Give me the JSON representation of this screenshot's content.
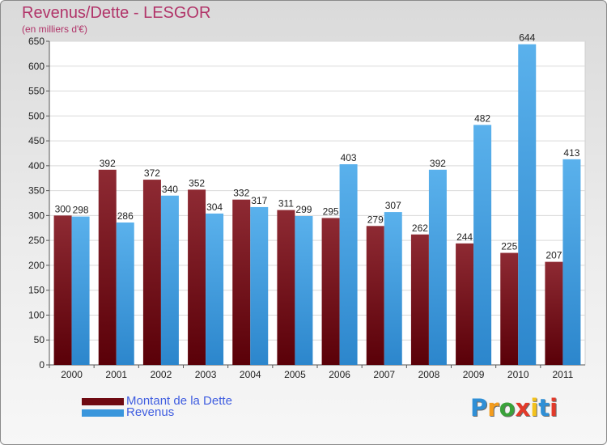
{
  "title": "Revenus/Dette - LESGOR",
  "subtitle": "(en milliers d'€)",
  "colors": {
    "debt": "#7a0f1a",
    "revenue": "#3a96dc",
    "title": "#b13469",
    "legend_text": "#3f5de0"
  },
  "legend": [
    {
      "label": "Montant de la Dette",
      "color": "#6e0a12"
    },
    {
      "label": "Revenus",
      "color": "#3a96dc"
    }
  ],
  "logo": {
    "letters": [
      "P",
      "r",
      "o",
      "x",
      "i",
      "t",
      "i"
    ],
    "colors": [
      "#2f8fd6",
      "#f39c1d",
      "#3aa23a",
      "#e23a2a",
      "#f3c21d",
      "#2f8fd6",
      "#e23a2a"
    ]
  },
  "chart_data": {
    "type": "bar",
    "categories": [
      "2000",
      "2001",
      "2002",
      "2003",
      "2004",
      "2005",
      "2006",
      "2007",
      "2008",
      "2009",
      "2010",
      "2011"
    ],
    "series": [
      {
        "name": "Montant de la Dette",
        "values": [
          300,
          392,
          372,
          352,
          332,
          311,
          295,
          279,
          262,
          244,
          225,
          207
        ]
      },
      {
        "name": "Revenus",
        "values": [
          298,
          286,
          340,
          304,
          317,
          299,
          403,
          307,
          392,
          482,
          644,
          413
        ]
      }
    ],
    "yticks": [
      0,
      50,
      100,
      150,
      200,
      250,
      300,
      350,
      400,
      450,
      500,
      550,
      600,
      650
    ],
    "ylim": [
      0,
      650
    ],
    "grid": true,
    "legend_position": "bottom-left"
  }
}
